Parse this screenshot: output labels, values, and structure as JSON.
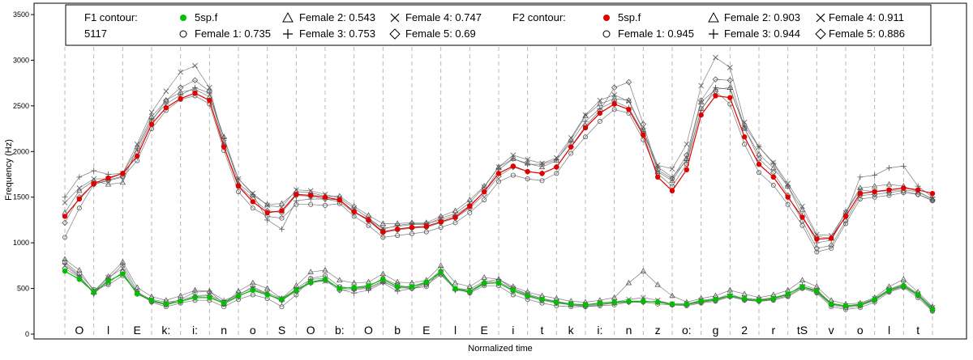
{
  "chart_data": {
    "type": "line",
    "xlabel": "Normalized time",
    "ylabel": "Frequency (Hz)",
    "ylim": [
      0,
      3600
    ],
    "yticks": [
      0,
      500,
      1000,
      1500,
      2000,
      2500,
      3000,
      3500
    ],
    "grid": "vertical dashed segment boundaries",
    "legend_position": "top",
    "legend": {
      "f1": {
        "title_line1": "F1 contour:",
        "title_line2": "5117",
        "entries": [
          "5sp.f",
          "Female 1: 0.735",
          "Female 2: 0.543",
          "Female 3: 0.753",
          "Female 4: 0.747",
          "Female 5: 0.69"
        ]
      },
      "f2": {
        "title_line1": "F2 contour:",
        "entries": [
          "5sp.f",
          "Female 1: 0.945",
          "Female 2: 0.903",
          "Female 3: 0.944",
          "Female 4: 0.911",
          "Female 5: 0.886"
        ]
      }
    },
    "segments": [
      "O",
      "l",
      "E",
      "k:",
      "i:",
      "n",
      "o",
      "S",
      "O",
      "b:",
      "O",
      "b",
      "E",
      "l",
      "E",
      "i",
      "t",
      "k",
      "i:",
      "n",
      "z",
      "o:",
      "g",
      "2",
      "r",
      "tS",
      "v",
      "o",
      "l",
      "t"
    ],
    "x": [
      0,
      0.5,
      1,
      1.5,
      2,
      2.5,
      3,
      3.5,
      4,
      4.5,
      5,
      5.5,
      6,
      6.5,
      7,
      7.5,
      8,
      8.5,
      9,
      9.5,
      10,
      10.5,
      11,
      11.5,
      12,
      12.5,
      13,
      13.5,
      14,
      14.5,
      15,
      15.5,
      16,
      16.5,
      17,
      17.5,
      18,
      18.5,
      19,
      19.5,
      20,
      20.5,
      21,
      21.5,
      22,
      22.5,
      23,
      23.5,
      24,
      24.5,
      25,
      25.5,
      26,
      26.5,
      27,
      27.5,
      28,
      28.5,
      29,
      29.5,
      30
    ],
    "series": [
      {
        "name": "5sp.f",
        "formant": "F2",
        "color": "#e00000",
        "values": [
          1290,
          1480,
          1650,
          1710,
          1760,
          1950,
          2300,
          2480,
          2580,
          2640,
          2560,
          2050,
          1620,
          1450,
          1330,
          1350,
          1530,
          1520,
          1500,
          1470,
          1340,
          1250,
          1120,
          1150,
          1170,
          1180,
          1230,
          1280,
          1400,
          1560,
          1760,
          1840,
          1780,
          1760,
          1830,
          2050,
          2260,
          2420,
          2520,
          2460,
          2180,
          1720,
          1570,
          1800,
          2400,
          2610,
          2590,
          2160,
          1860,
          1720,
          1500,
          1280,
          1040,
          1050,
          1290,
          1540,
          1560,
          1580,
          1600,
          1580,
          1540
        ]
      },
      {
        "name": "5sp.f",
        "formant": "F1",
        "color": "#00c000",
        "values": [
          690,
          600,
          460,
          580,
          660,
          440,
          370,
          330,
          360,
          400,
          400,
          340,
          420,
          480,
          430,
          380,
          480,
          570,
          600,
          500,
          510,
          530,
          600,
          520,
          520,
          570,
          680,
          500,
          470,
          560,
          560,
          480,
          420,
          380,
          350,
          330,
          320,
          340,
          350,
          360,
          360,
          350,
          330,
          330,
          360,
          380,
          420,
          390,
          370,
          390,
          440,
          520,
          470,
          330,
          310,
          320,
          380,
          480,
          530,
          430,
          270
        ]
      },
      {
        "name": "Female 1",
        "formant": "F2",
        "color": "#444444",
        "values": [
          1060,
          1380,
          1640,
          1680,
          1720,
          1900,
          2250,
          2450,
          2570,
          2610,
          2520,
          2010,
          1560,
          1380,
          1290,
          1270,
          1420,
          1420,
          1410,
          1430,
          1290,
          1190,
          1060,
          1080,
          1100,
          1120,
          1170,
          1220,
          1330,
          1470,
          1670,
          1740,
          1700,
          1680,
          1760,
          1980,
          2160,
          2330,
          2460,
          2420,
          2130,
          1760,
          1620,
          1860,
          2470,
          2660,
          2520,
          2080,
          1770,
          1630,
          1420,
          1190,
          900,
          940,
          1210,
          1480,
          1500,
          1520,
          1550,
          1530,
          1460
        ]
      },
      {
        "name": "Female 2",
        "formant": "F2",
        "color": "#444444",
        "values": [
          1330,
          1570,
          1680,
          1640,
          1660,
          2050,
          2380,
          2560,
          2650,
          2680,
          2600,
          2160,
          1650,
          1520,
          1420,
          1430,
          1560,
          1550,
          1510,
          1510,
          1400,
          1300,
          1210,
          1210,
          1220,
          1220,
          1290,
          1350,
          1470,
          1620,
          1830,
          1920,
          1870,
          1830,
          1900,
          2130,
          2390,
          2520,
          2580,
          2560,
          2240,
          1780,
          1680,
          1920,
          2540,
          2680,
          2700,
          2250,
          1970,
          1820,
          1620,
          1360,
          1070,
          1050,
          1340,
          1600,
          1620,
          1640,
          1620,
          1560,
          1480
        ]
      },
      {
        "name": "Female 3",
        "formant": "F2",
        "color": "#444444",
        "values": [
          1500,
          1720,
          1790,
          1750,
          1760,
          2030,
          2350,
          2520,
          2620,
          2700,
          2640,
          2150,
          1700,
          1530,
          1250,
          1150,
          1460,
          1480,
          1480,
          1450,
          1330,
          1260,
          1150,
          1190,
          1210,
          1210,
          1250,
          1300,
          1410,
          1560,
          1800,
          1920,
          1860,
          1860,
          1910,
          2100,
          2330,
          2470,
          2550,
          2480,
          2200,
          1830,
          1720,
          1900,
          2450,
          2700,
          2680,
          2280,
          2050,
          1870,
          1620,
          1300,
          1000,
          1030,
          1300,
          1720,
          1740,
          1820,
          1840,
          1620,
          1500
        ]
      },
      {
        "name": "Female 4",
        "formant": "F2",
        "color": "#444444",
        "values": [
          1440,
          1600,
          1700,
          1700,
          1760,
          2080,
          2430,
          2660,
          2870,
          2940,
          2700,
          2100,
          1700,
          1540,
          1410,
          1390,
          1580,
          1570,
          1530,
          1490,
          1380,
          1270,
          1160,
          1180,
          1200,
          1200,
          1270,
          1320,
          1440,
          1610,
          1830,
          1960,
          1910,
          1870,
          1930,
          2150,
          2400,
          2560,
          2620,
          2550,
          2230,
          1850,
          1810,
          2080,
          2720,
          3030,
          2920,
          2320,
          2050,
          1880,
          1650,
          1400,
          1090,
          1080,
          1330,
          1580,
          1560,
          1570,
          1580,
          1560,
          1480
        ]
      },
      {
        "name": "Female 5",
        "formant": "F2",
        "color": "#444444",
        "values": [
          1220,
          1500,
          1640,
          1690,
          1730,
          1990,
          2330,
          2560,
          2700,
          2780,
          2660,
          2060,
          1630,
          1480,
          1350,
          1330,
          1520,
          1510,
          1480,
          1470,
          1340,
          1240,
          1110,
          1140,
          1160,
          1170,
          1220,
          1270,
          1380,
          1530,
          1730,
          1830,
          1780,
          1760,
          1830,
          2050,
          2280,
          2450,
          2700,
          2760,
          2300,
          1800,
          1700,
          1960,
          2560,
          2790,
          2780,
          2260,
          1920,
          1770,
          1520,
          1240,
          940,
          970,
          1240,
          1520,
          1530,
          1550,
          1570,
          1530,
          1470
        ]
      },
      {
        "name": "Female 1",
        "formant": "F1",
        "color": "#444444",
        "values": [
          790,
          660,
          490,
          540,
          640,
          460,
          350,
          300,
          340,
          370,
          370,
          300,
          380,
          430,
          390,
          300,
          430,
          610,
          640,
          520,
          500,
          520,
          610,
          540,
          500,
          520,
          690,
          500,
          450,
          530,
          530,
          430,
          380,
          340,
          310,
          300,
          300,
          310,
          320,
          350,
          350,
          330,
          320,
          310,
          340,
          360,
          410,
          370,
          360,
          370,
          410,
          500,
          450,
          300,
          270,
          290,
          350,
          460,
          510,
          400,
          250
        ]
      },
      {
        "name": "Female 2",
        "formant": "F1",
        "color": "#444444",
        "values": [
          820,
          700,
          470,
          630,
          790,
          510,
          410,
          370,
          420,
          480,
          470,
          330,
          470,
          560,
          500,
          390,
          530,
          680,
          700,
          590,
          560,
          570,
          660,
          570,
          560,
          590,
          750,
          560,
          520,
          620,
          600,
          520,
          460,
          420,
          390,
          360,
          350,
          370,
          400,
          560,
          690,
          540,
          420,
          350,
          390,
          420,
          480,
          440,
          400,
          430,
          480,
          590,
          520,
          370,
          330,
          340,
          400,
          520,
          600,
          460,
          300
        ]
      },
      {
        "name": "Female 3",
        "formant": "F1",
        "color": "#444444",
        "values": [
          770,
          640,
          440,
          600,
          760,
          470,
          360,
          330,
          380,
          460,
          470,
          370,
          430,
          520,
          440,
          360,
          500,
          600,
          610,
          490,
          450,
          480,
          560,
          470,
          500,
          560,
          700,
          480,
          470,
          570,
          600,
          500,
          430,
          380,
          350,
          320,
          300,
          320,
          340,
          350,
          350,
          360,
          330,
          330,
          350,
          380,
          440,
          380,
          360,
          390,
          430,
          540,
          490,
          330,
          300,
          320,
          370,
          490,
          540,
          430,
          280
        ]
      },
      {
        "name": "Female 4",
        "formant": "F1",
        "color": "#444444",
        "values": [
          750,
          630,
          460,
          620,
          720,
          450,
          380,
          350,
          370,
          420,
          430,
          350,
          440,
          500,
          450,
          390,
          490,
          570,
          580,
          510,
          500,
          510,
          580,
          500,
          520,
          560,
          660,
          500,
          490,
          580,
          570,
          500,
          440,
          390,
          360,
          330,
          320,
          340,
          350,
          380,
          400,
          370,
          330,
          330,
          370,
          390,
          420,
          390,
          380,
          400,
          440,
          520,
          480,
          340,
          310,
          330,
          390,
          490,
          550,
          440,
          290
        ]
      },
      {
        "name": "Female 5",
        "formant": "F1",
        "color": "#444444",
        "values": [
          720,
          620,
          450,
          560,
          680,
          440,
          360,
          320,
          360,
          410,
          420,
          330,
          410,
          490,
          440,
          370,
          470,
          560,
          590,
          480,
          490,
          500,
          570,
          510,
          500,
          540,
          650,
          490,
          460,
          550,
          560,
          470,
          410,
          370,
          340,
          320,
          310,
          330,
          340,
          360,
          360,
          350,
          320,
          320,
          350,
          370,
          410,
          380,
          360,
          380,
          420,
          510,
          460,
          320,
          290,
          310,
          370,
          470,
          520,
          420,
          260
        ]
      }
    ]
  }
}
